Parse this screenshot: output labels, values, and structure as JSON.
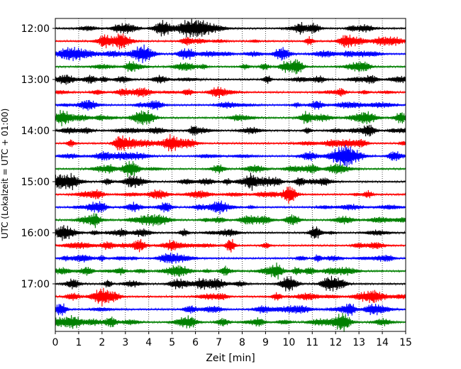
{
  "chart_data": {
    "type": "line",
    "title": "",
    "xlabel": "Zeit  [min]",
    "ylabel": "UTC (Lokalzeit = UTC + 01:00)",
    "xlim": [
      0,
      15
    ],
    "x_ticks": [
      "0",
      "1",
      "2",
      "3",
      "4",
      "5",
      "6",
      "7",
      "8",
      "9",
      "10",
      "11",
      "12",
      "13",
      "14",
      "15"
    ],
    "y_ticks": [
      "12:00",
      "13:00",
      "14:00",
      "15:00",
      "16:00",
      "17:00"
    ],
    "grid": {
      "x": "dotted vertical",
      "y": "none"
    },
    "trace_interval_minutes": 15,
    "trace_colors": [
      "#000000",
      "#ff0000",
      "#0000ff",
      "#008000"
    ],
    "traces": [
      {
        "start": "12:00"
      },
      {
        "start": "12:15"
      },
      {
        "start": "12:30"
      },
      {
        "start": "12:45"
      },
      {
        "start": "13:00"
      },
      {
        "start": "13:15"
      },
      {
        "start": "13:30"
      },
      {
        "start": "13:45"
      },
      {
        "start": "14:00"
      },
      {
        "start": "14:15"
      },
      {
        "start": "14:30"
      },
      {
        "start": "14:45"
      },
      {
        "start": "15:00"
      },
      {
        "start": "15:15"
      },
      {
        "start": "15:30"
      },
      {
        "start": "15:45"
      },
      {
        "start": "16:00"
      },
      {
        "start": "16:15"
      },
      {
        "start": "16:30"
      },
      {
        "start": "16:45"
      },
      {
        "start": "17:00"
      },
      {
        "start": "17:15"
      },
      {
        "start": "17:30"
      },
      {
        "start": "17:45"
      }
    ]
  }
}
